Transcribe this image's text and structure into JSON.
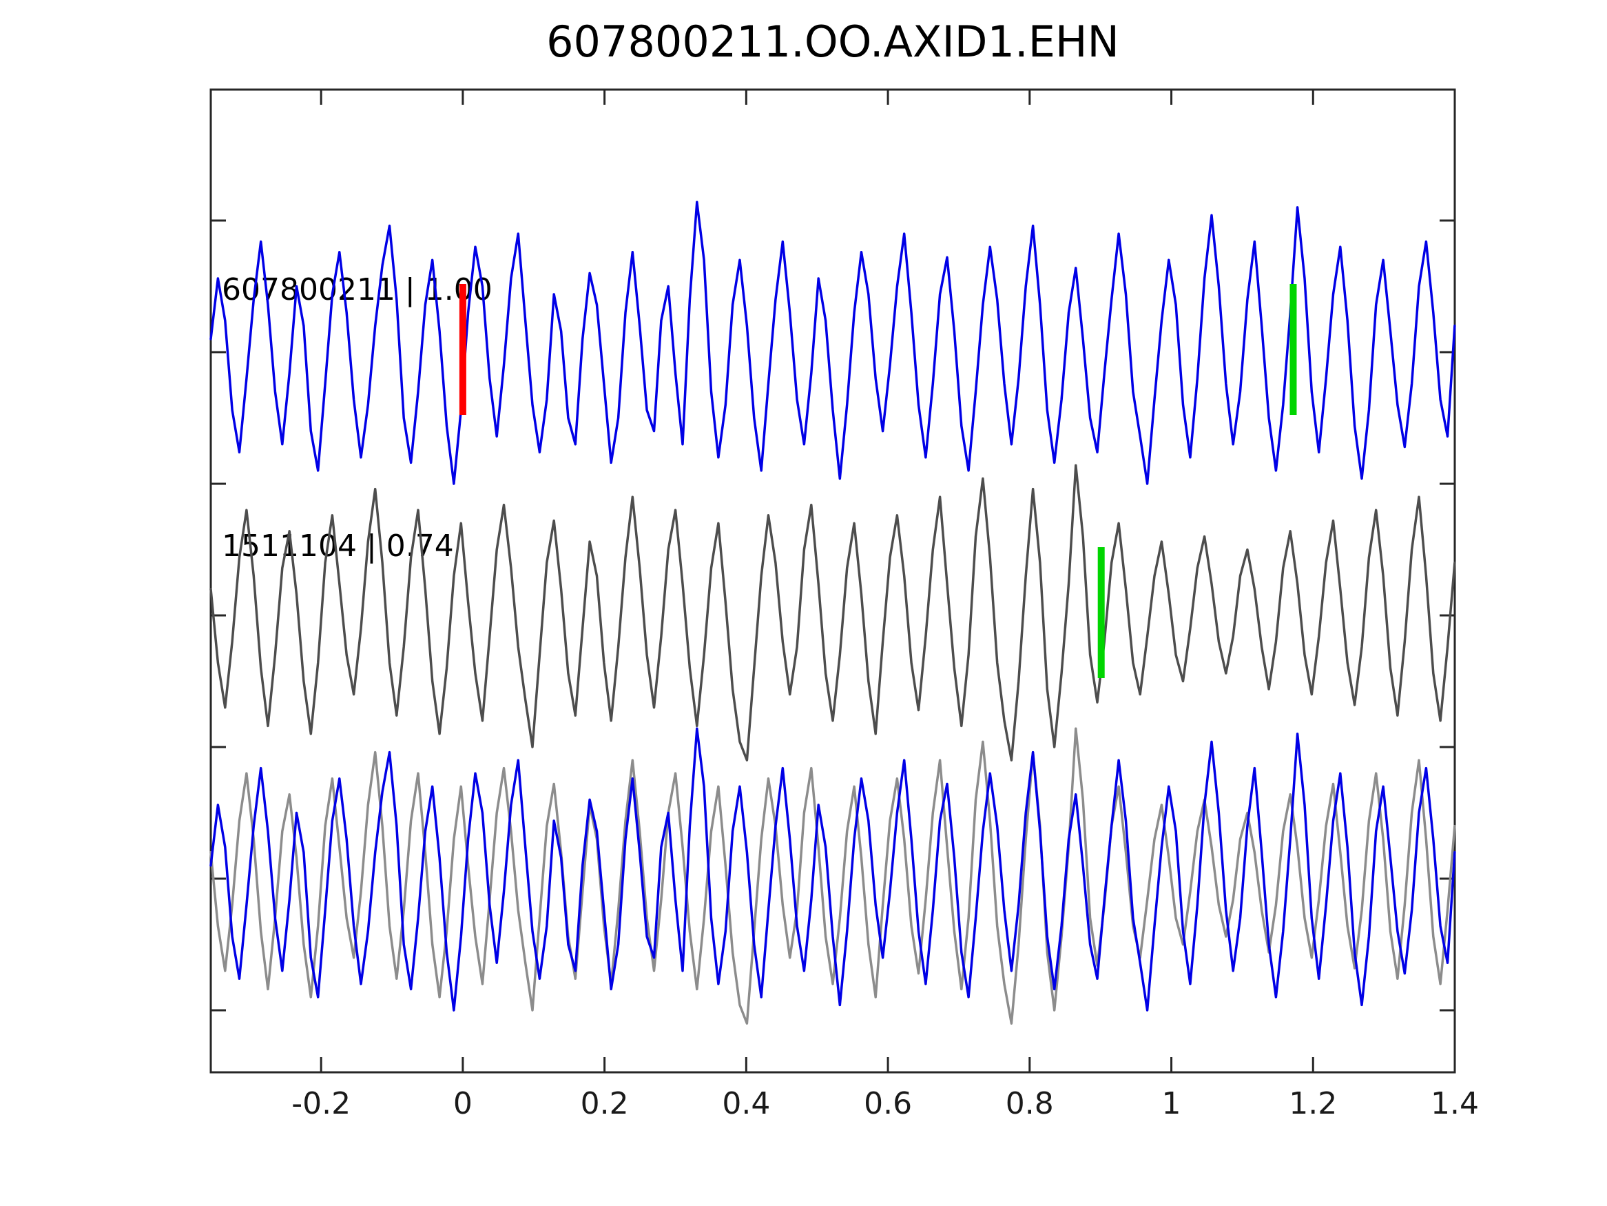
{
  "chart_data": {
    "type": "line",
    "title": "607800211.OO.AXID1.EHN",
    "xlabel": "",
    "ylabel": "",
    "xlim": [
      -0.3557,
      1.4
    ],
    "x_ticks": [
      {
        "value": -0.2,
        "label": "-0.2"
      },
      {
        "value": 0,
        "label": "0"
      },
      {
        "value": 0.2,
        "label": "0.2"
      },
      {
        "value": 0.4,
        "label": "0.4"
      },
      {
        "value": 0.6,
        "label": "0.6"
      },
      {
        "value": 0.8,
        "label": "0.8"
      },
      {
        "value": 1,
        "label": "1"
      },
      {
        "value": 1.2,
        "label": "1.2"
      },
      {
        "value": 1.4,
        "label": "1.4"
      }
    ],
    "y_ticks_unlabeled": 7,
    "grid": false,
    "legend": "none",
    "trace_labels": [
      {
        "text": "607800211 | 1.00",
        "panel": 0
      },
      {
        "text": "1511104 | 0.74",
        "panel": 1
      }
    ],
    "colors": {
      "template": "#0000E6",
      "detection_dark": "#4D4D4D",
      "detection_light": "#8C8C8C",
      "pick_red": "#FF0000",
      "pick_green": "#00D500",
      "axis": "#262626",
      "text": "#000000"
    },
    "sampling": {
      "x0": -0.3557,
      "dx": 0.0100897,
      "n": 175
    },
    "series": [
      {
        "name": "template-trace",
        "wave": "template",
        "panel": 0,
        "color": "template"
      },
      {
        "name": "detection-trace",
        "wave": "detection",
        "panel": 1,
        "color": "detection_dark"
      },
      {
        "name": "overlay-detection-trace",
        "wave": "detection",
        "panel": 2,
        "color": "detection_light"
      },
      {
        "name": "overlay-template-trace",
        "wave": "template",
        "panel": 2,
        "color": "template"
      }
    ],
    "markers": [
      {
        "name": "red-pick",
        "panel": 0,
        "x": 0.0,
        "color": "pick_red"
      },
      {
        "name": "green-pick-template",
        "panel": 0,
        "x": 1.172,
        "color": "pick_green"
      },
      {
        "name": "green-pick-detection",
        "panel": 1,
        "x": 0.901,
        "color": "pick_green"
      }
    ],
    "waveforms": {
      "template": [
        0.05,
        0.28,
        0.12,
        -0.22,
        -0.38,
        -0.1,
        0.2,
        0.42,
        0.18,
        -0.15,
        -0.35,
        -0.08,
        0.25,
        0.1,
        -0.3,
        -0.45,
        -0.12,
        0.22,
        0.38,
        0.15,
        -0.18,
        -0.4,
        -0.2,
        0.1,
        0.33,
        0.48,
        0.2,
        -0.25,
        -0.42,
        -0.15,
        0.18,
        0.35,
        0.08,
        -0.28,
        -0.5,
        -0.22,
        0.15,
        0.4,
        0.25,
        -0.1,
        -0.32,
        -0.05,
        0.28,
        0.45,
        0.12,
        -0.2,
        -0.38,
        -0.18,
        0.22,
        0.08,
        -0.25,
        -0.35,
        0.05,
        0.3,
        0.18,
        -0.12,
        -0.42,
        -0.25,
        0.15,
        0.38,
        0.1,
        -0.22,
        -0.3,
        0.12,
        0.25,
        -0.08,
        -0.35,
        0.2,
        0.57,
        0.35,
        -0.15,
        -0.4,
        -0.2,
        0.18,
        0.35,
        0.1,
        -0.25,
        -0.45,
        -0.12,
        0.2,
        0.42,
        0.15,
        -0.18,
        -0.35,
        -0.08,
        0.28,
        0.12,
        -0.22,
        -0.48,
        -0.2,
        0.15,
        0.38,
        0.22,
        -0.1,
        -0.3,
        -0.05,
        0.25,
        0.45,
        0.15,
        -0.2,
        -0.4,
        -0.12,
        0.22,
        0.36,
        0.08,
        -0.28,
        -0.45,
        -0.15,
        0.18,
        0.4,
        0.2,
        -0.12,
        -0.35,
        -0.1,
        0.25,
        0.48,
        0.18,
        -0.22,
        -0.42,
        -0.18,
        0.15,
        0.32,
        0.05,
        -0.25,
        -0.38,
        -0.08,
        0.2,
        0.45,
        0.22,
        -0.15,
        -0.32,
        -0.5,
        -0.18,
        0.12,
        0.35,
        0.18,
        -0.2,
        -0.4,
        -0.1,
        0.28,
        0.52,
        0.25,
        -0.12,
        -0.35,
        -0.15,
        0.2,
        0.42,
        0.1,
        -0.25,
        -0.45,
        -0.2,
        0.15,
        0.55,
        0.28,
        -0.15,
        -0.38,
        -0.1,
        0.22,
        0.4,
        0.12,
        -0.28,
        -0.48,
        -0.22,
        0.18,
        0.35,
        0.08,
        -0.2,
        -0.36,
        -0.12,
        0.25,
        0.42,
        0.15,
        -0.18,
        -0.32,
        0.1
      ],
      "detection": [
        0.1,
        -0.18,
        -0.35,
        -0.1,
        0.22,
        0.4,
        0.15,
        -0.2,
        -0.42,
        -0.15,
        0.18,
        0.32,
        0.08,
        -0.25,
        -0.45,
        -0.18,
        0.2,
        0.38,
        0.12,
        -0.15,
        -0.3,
        -0.05,
        0.28,
        0.48,
        0.2,
        -0.18,
        -0.38,
        -0.12,
        0.22,
        0.4,
        0.1,
        -0.25,
        -0.45,
        -0.2,
        0.15,
        0.35,
        0.05,
        -0.22,
        -0.4,
        -0.08,
        0.25,
        0.42,
        0.18,
        -0.12,
        -0.32,
        -0.5,
        -0.15,
        0.2,
        0.36,
        0.1,
        -0.22,
        -0.38,
        -0.05,
        0.28,
        0.15,
        -0.18,
        -0.4,
        -0.12,
        0.22,
        0.45,
        0.18,
        -0.15,
        -0.35,
        -0.08,
        0.25,
        0.4,
        0.12,
        -0.2,
        -0.42,
        -0.15,
        0.18,
        0.35,
        0.05,
        -0.28,
        -0.48,
        -0.55,
        -0.2,
        0.15,
        0.38,
        0.2,
        -0.1,
        -0.3,
        -0.12,
        0.25,
        0.42,
        0.12,
        -0.22,
        -0.4,
        -0.15,
        0.18,
        0.35,
        0.08,
        -0.25,
        -0.45,
        -0.1,
        0.22,
        0.38,
        0.15,
        -0.18,
        -0.36,
        -0.08,
        0.25,
        0.45,
        0.12,
        -0.2,
        -0.42,
        -0.15,
        0.3,
        0.52,
        0.22,
        -0.18,
        -0.4,
        -0.55,
        -0.25,
        0.15,
        0.48,
        0.2,
        -0.28,
        -0.5,
        -0.22,
        0.12,
        0.57,
        0.3,
        -0.15,
        -0.33,
        -0.1,
        0.2,
        0.35,
        0.1,
        -0.18,
        -0.3,
        -0.08,
        0.15,
        0.28,
        0.08,
        -0.15,
        -0.25,
        -0.05,
        0.18,
        0.3,
        0.12,
        -0.1,
        -0.22,
        -0.08,
        0.15,
        0.25,
        0.1,
        -0.12,
        -0.28,
        -0.1,
        0.18,
        0.32,
        0.12,
        -0.15,
        -0.3,
        -0.08,
        0.2,
        0.36,
        0.1,
        -0.18,
        -0.34,
        -0.12,
        0.22,
        0.4,
        0.15,
        -0.2,
        -0.38,
        -0.1,
        0.25,
        0.45,
        0.15,
        -0.22,
        -0.4,
        -0.12,
        0.2
      ]
    }
  }
}
